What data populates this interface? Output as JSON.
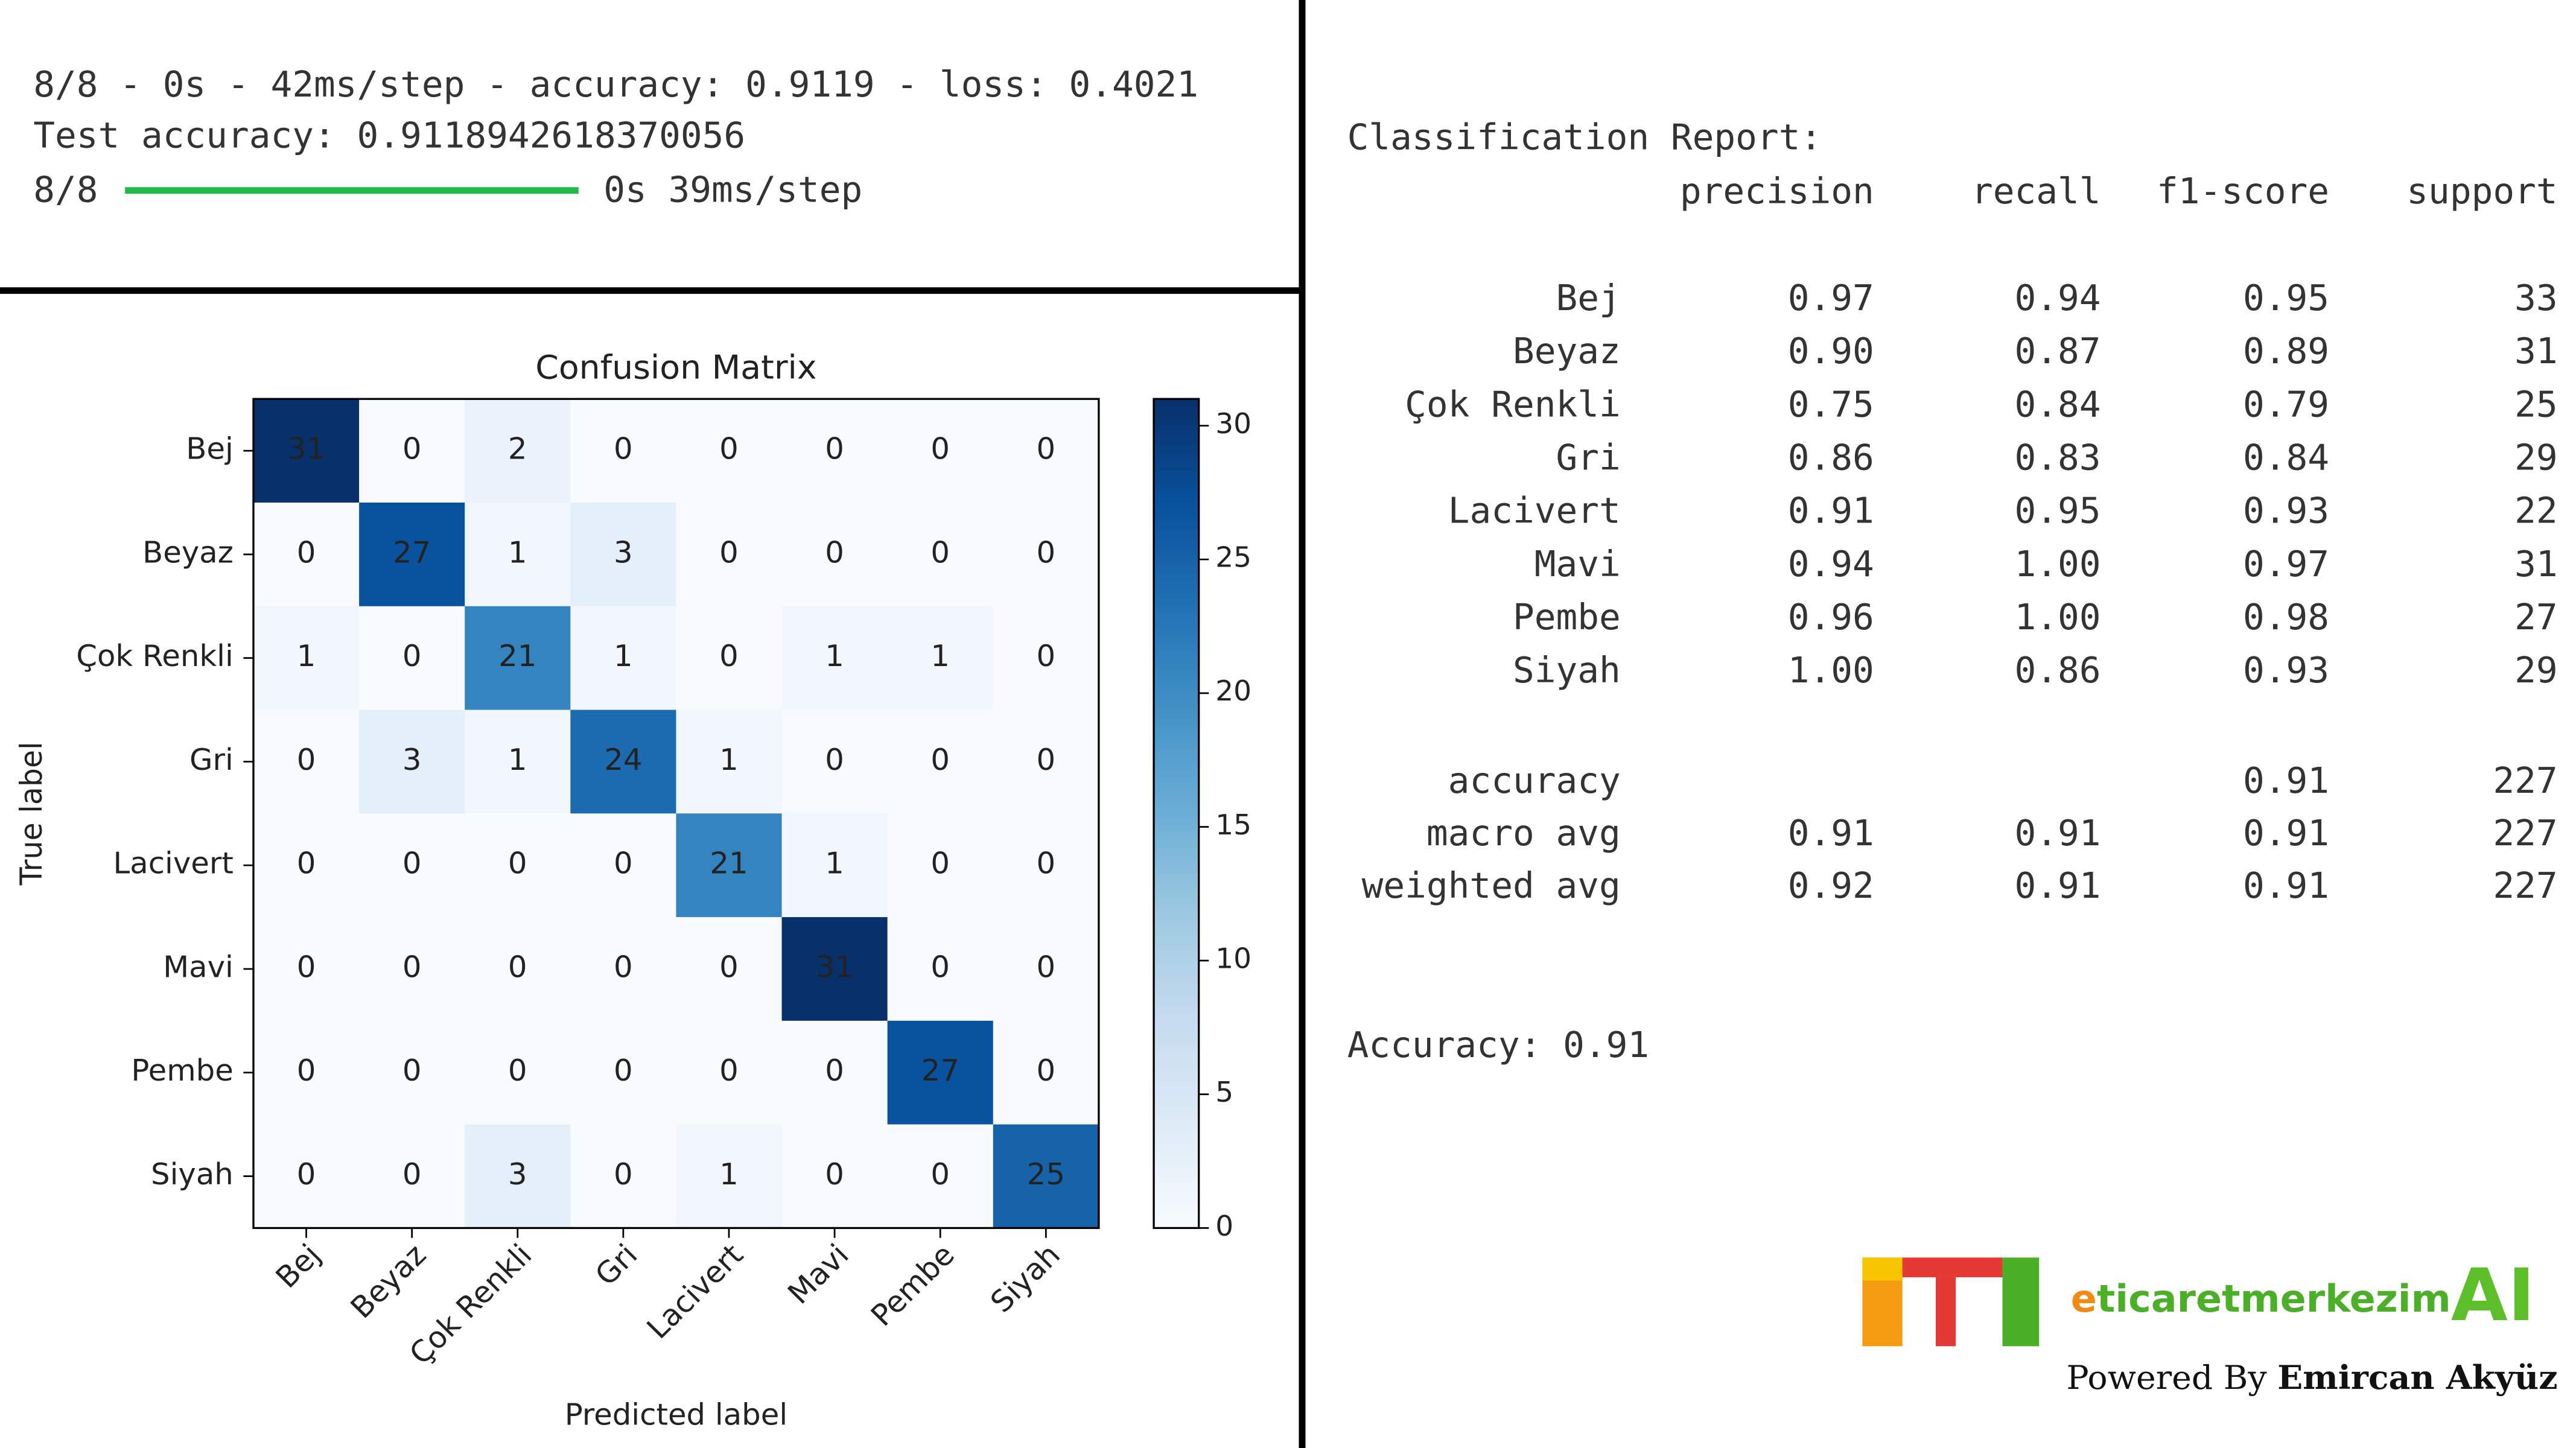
{
  "console": {
    "lines": [
      "8/8 - 0s - 42ms/step - accuracy: 0.9119 - loss: 0.4021",
      "Test accuracy: 0.9118942618370056"
    ],
    "progress": {
      "step": "8/8",
      "time": "0s 39ms/step"
    }
  },
  "chart_data": {
    "type": "heatmap",
    "title": "Confusion Matrix",
    "xlabel": "Predicted label",
    "ylabel": "True label",
    "categories": [
      "Bej",
      "Beyaz",
      "Çok Renkli",
      "Gri",
      "Lacivert",
      "Mavi",
      "Pembe",
      "Siyah"
    ],
    "y_categories": [
      "Bej",
      "Beyaz",
      "Çok Renkli",
      "Gri",
      "Lacivert",
      "Mavi",
      "Pembe",
      "Siyah"
    ],
    "values": [
      [
        31,
        0,
        2,
        0,
        0,
        0,
        0,
        0
      ],
      [
        0,
        27,
        1,
        3,
        0,
        0,
        0,
        0
      ],
      [
        1,
        0,
        21,
        1,
        0,
        1,
        1,
        0
      ],
      [
        0,
        3,
        1,
        24,
        1,
        0,
        0,
        0
      ],
      [
        0,
        0,
        0,
        0,
        21,
        1,
        0,
        0
      ],
      [
        0,
        0,
        0,
        0,
        0,
        31,
        0,
        0
      ],
      [
        0,
        0,
        0,
        0,
        0,
        0,
        27,
        0
      ],
      [
        0,
        0,
        3,
        0,
        1,
        0,
        0,
        25
      ]
    ],
    "zlim": [
      0,
      31
    ],
    "zticks": [
      0,
      5,
      10,
      15,
      20,
      25,
      30
    ],
    "colormap": "Blues"
  },
  "report": {
    "title": "Classification Report:",
    "columns": [
      "precision",
      "recall",
      "f1-score",
      "support"
    ],
    "rows": [
      {
        "label": "Bej",
        "values": [
          "0.97",
          "0.94",
          "0.95",
          "33"
        ]
      },
      {
        "label": "Beyaz",
        "values": [
          "0.90",
          "0.87",
          "0.89",
          "31"
        ]
      },
      {
        "label": "Çok Renkli",
        "values": [
          "0.75",
          "0.84",
          "0.79",
          "25"
        ]
      },
      {
        "label": "Gri",
        "values": [
          "0.86",
          "0.83",
          "0.84",
          "29"
        ]
      },
      {
        "label": "Lacivert",
        "values": [
          "0.91",
          "0.95",
          "0.93",
          "22"
        ]
      },
      {
        "label": "Mavi",
        "values": [
          "0.94",
          "1.00",
          "0.97",
          "31"
        ]
      },
      {
        "label": "Pembe",
        "values": [
          "0.96",
          "1.00",
          "0.98",
          "27"
        ]
      },
      {
        "label": "Siyah",
        "values": [
          "1.00",
          "0.86",
          "0.93",
          "29"
        ]
      }
    ],
    "summary_rows": [
      {
        "label": "accuracy",
        "values": [
          "0.91",
          "227"
        ]
      },
      {
        "label": "macro avg",
        "values": [
          "0.91",
          "0.91",
          "0.91",
          "227"
        ]
      },
      {
        "label": "weighted avg",
        "values": [
          "0.92",
          "0.91",
          "0.91",
          "227"
        ]
      }
    ],
    "footer": "Accuracy: 0.91"
  },
  "branding": {
    "brand": "eticaretmerkezim",
    "ai": "AI",
    "powered_by": "Powered By",
    "author": "Emircan Akyüz"
  }
}
